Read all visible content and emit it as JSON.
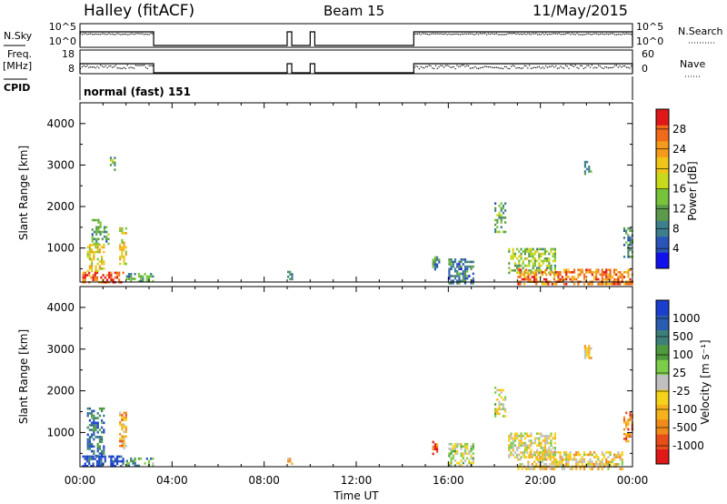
{
  "header": {
    "station": "Halley (fitACF)",
    "beam": "Beam 15",
    "date": "11/May/2015"
  },
  "strips": {
    "nsky": {
      "label": "N.Sky",
      "tick_top": "10^5",
      "tick_bottom": "10^0"
    },
    "nsearch": {
      "label": "N.Search",
      "tick_top": "10^5",
      "tick_bottom": "10^0"
    },
    "freq": {
      "label_line1": "Freq.",
      "label_line2": "[MHz]",
      "tick_top": "18",
      "tick_bottom": "8"
    },
    "nave": {
      "label": "Nave",
      "tick_top": "60",
      "tick_bottom": "0"
    },
    "cpid": {
      "label": "CPID",
      "text": "normal (fast) 151"
    }
  },
  "chart_data": [
    {
      "type": "heatmap",
      "title": "",
      "ylabel": "Slant Range [km]",
      "xlabel": "",
      "ylim": [
        180,
        4500
      ],
      "xlim": [
        0,
        24
      ],
      "yticks": [
        1000,
        2000,
        3000,
        4000
      ],
      "xticks": [
        0,
        4,
        8,
        12,
        16,
        20,
        24
      ],
      "colorbar": {
        "label": "Power [dB]",
        "tick_labels": [
          "4",
          "8",
          "12",
          "16",
          "20",
          "24",
          "28"
        ],
        "range": [
          0,
          32
        ],
        "colors": [
          "#1111ee",
          "#2a55b8",
          "#3d7f8c",
          "#5a9a4a",
          "#77c43a",
          "#c8d81a",
          "#f0c418",
          "#f59a1a",
          "#f06a1a",
          "#e01818"
        ]
      },
      "echo_regions": [
        {
          "t0": 0.1,
          "t1": 1.9,
          "r0": 200,
          "r1": 430,
          "level": 0.85
        },
        {
          "t0": 0.3,
          "t1": 1.0,
          "r0": 450,
          "r1": 1100,
          "level": 0.6
        },
        {
          "t0": 0.5,
          "t1": 1.2,
          "r0": 1100,
          "r1": 1700,
          "level": 0.35
        },
        {
          "t0": 1.7,
          "t1": 2.0,
          "r0": 600,
          "r1": 1500,
          "level": 0.6
        },
        {
          "t0": 2.0,
          "t1": 3.2,
          "r0": 200,
          "r1": 400,
          "level": 0.35
        },
        {
          "t0": 1.3,
          "t1": 1.5,
          "r0": 2900,
          "r1": 3200,
          "level": 0.4
        },
        {
          "t0": 9.0,
          "t1": 9.2,
          "r0": 250,
          "r1": 450,
          "level": 0.3
        },
        {
          "t0": 15.3,
          "t1": 15.6,
          "r0": 500,
          "r1": 800,
          "level": 0.3
        },
        {
          "t0": 16.0,
          "t1": 17.1,
          "r0": 150,
          "r1": 750,
          "level": 0.25
        },
        {
          "t0": 18.0,
          "t1": 18.5,
          "r0": 1400,
          "r1": 2100,
          "level": 0.35
        },
        {
          "t0": 18.6,
          "t1": 20.6,
          "r0": 400,
          "r1": 1000,
          "level": 0.45
        },
        {
          "t0": 19.0,
          "t1": 24.0,
          "r0": 150,
          "r1": 500,
          "level": 0.8
        },
        {
          "t0": 21.9,
          "t1": 22.2,
          "r0": 2800,
          "r1": 3100,
          "level": 0.3
        },
        {
          "t0": 23.6,
          "t1": 24.0,
          "r0": 800,
          "r1": 1500,
          "level": 0.3
        }
      ]
    },
    {
      "type": "heatmap",
      "title": "",
      "ylabel": "Slant Range [km]",
      "xlabel": "Time UT",
      "ylim": [
        180,
        4500
      ],
      "xlim": [
        0,
        24
      ],
      "yticks": [
        1000,
        2000,
        3000,
        4000
      ],
      "xticks": [
        0,
        4,
        8,
        12,
        16,
        20,
        24
      ],
      "xtick_labels": [
        "00:00",
        "04:00",
        "08:00",
        "12:00",
        "16:00",
        "20:00",
        "00:00"
      ],
      "colorbar": {
        "label": "Velocity [m s⁻¹]",
        "tick_labels": [
          "1000",
          "500",
          "100",
          "25",
          "-25",
          "-100",
          "-500",
          "-1000"
        ],
        "colors": [
          "#1a3fcf",
          "#2a5cb0",
          "#3d7f7a",
          "#4e9a3d",
          "#7ccd4a",
          "#c0c0c0",
          "#f6d21a",
          "#f5b21a",
          "#f08a1a",
          "#e84c18",
          "#e01818"
        ]
      },
      "echo_regions": [
        {
          "t0": 0.1,
          "t1": 1.9,
          "r0": 200,
          "r1": 450,
          "level": 0.05
        },
        {
          "t0": 0.3,
          "t1": 1.0,
          "r0": 450,
          "r1": 1600,
          "level": 0.2
        },
        {
          "t0": 1.7,
          "t1": 2.0,
          "r0": 600,
          "r1": 1500,
          "level": 0.7
        },
        {
          "t0": 2.0,
          "t1": 3.2,
          "r0": 200,
          "r1": 400,
          "level": 0.3
        },
        {
          "t0": 9.0,
          "t1": 9.2,
          "r0": 250,
          "r1": 450,
          "level": 0.6
        },
        {
          "t0": 15.3,
          "t1": 15.6,
          "r0": 500,
          "r1": 800,
          "level": 0.85
        },
        {
          "t0": 16.0,
          "t1": 17.1,
          "r0": 200,
          "r1": 750,
          "level": 0.45
        },
        {
          "t0": 18.0,
          "t1": 18.5,
          "r0": 1400,
          "r1": 2100,
          "level": 0.5
        },
        {
          "t0": 18.6,
          "t1": 20.6,
          "r0": 400,
          "r1": 1000,
          "level": 0.55
        },
        {
          "t0": 19.0,
          "t1": 23.6,
          "r0": 150,
          "r1": 550,
          "level": 0.6
        },
        {
          "t0": 21.9,
          "t1": 22.2,
          "r0": 2800,
          "r1": 3100,
          "level": 0.6
        },
        {
          "t0": 23.6,
          "t1": 24.0,
          "r0": 800,
          "r1": 1500,
          "level": 0.8
        }
      ]
    }
  ],
  "strip_data": {
    "activity_intervals_ut": [
      [
        0.0,
        3.2
      ],
      [
        9.0,
        9.2
      ],
      [
        10.0,
        10.2
      ],
      [
        14.5,
        24.0
      ]
    ]
  }
}
